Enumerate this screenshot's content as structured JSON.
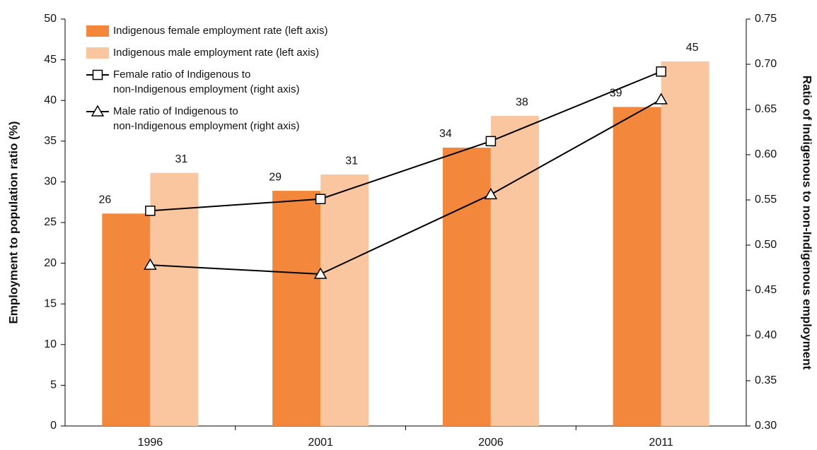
{
  "chart_data": {
    "type": "bar-line",
    "y_label": "Employment to population ratio (%)",
    "y2_label": "Ratio of Indigenous to non-Indigenous employment",
    "categories": [
      "1996",
      "2001",
      "2006",
      "2011"
    ],
    "ylim": [
      0,
      50
    ],
    "yticks": [
      0,
      5,
      10,
      15,
      20,
      25,
      30,
      35,
      40,
      45,
      50
    ],
    "y2lim": [
      0.3,
      0.75
    ],
    "y2ticks": [
      {
        "value": 0.3,
        "label": "0.30"
      },
      0.35,
      {
        "value": 0.4,
        "label": "0.40"
      },
      0.45,
      {
        "value": 0.5,
        "label": "0.50"
      },
      0.55,
      {
        "value": 0.6,
        "label": "0.60"
      },
      0.65,
      {
        "value": 0.7,
        "label": "0.70"
      },
      0.75
    ],
    "legend": "top-left",
    "series": [
      {
        "name": "Indigenous female employment rate (left axis)",
        "type": "bar",
        "color": "#f3873b",
        "values": [
          26.1,
          28.9,
          34.2,
          39.2
        ],
        "value_labels": [
          "26",
          "29",
          "34",
          "39"
        ]
      },
      {
        "name": "Indigenous male employment rate (left axis)",
        "type": "bar",
        "color": "#f9c6a0",
        "values": [
          31.1,
          30.9,
          38.1,
          44.8
        ],
        "value_labels": [
          "31",
          "31",
          "38",
          "45"
        ]
      },
      {
        "name": "Female ratio of Indigenous to\nnon-Indigenous employment (right axis)",
        "type": "line",
        "marker": "square",
        "axis": "y2",
        "color": "#000000",
        "values": [
          0.538,
          0.551,
          0.615,
          0.692
        ]
      },
      {
        "name": "Male ratio of Indigenous to\nnon-Indigenous employment (right axis)",
        "type": "line",
        "marker": "triangle",
        "axis": "y2",
        "color": "#000000",
        "values": [
          0.478,
          0.468,
          0.556,
          0.661
        ]
      }
    ]
  }
}
